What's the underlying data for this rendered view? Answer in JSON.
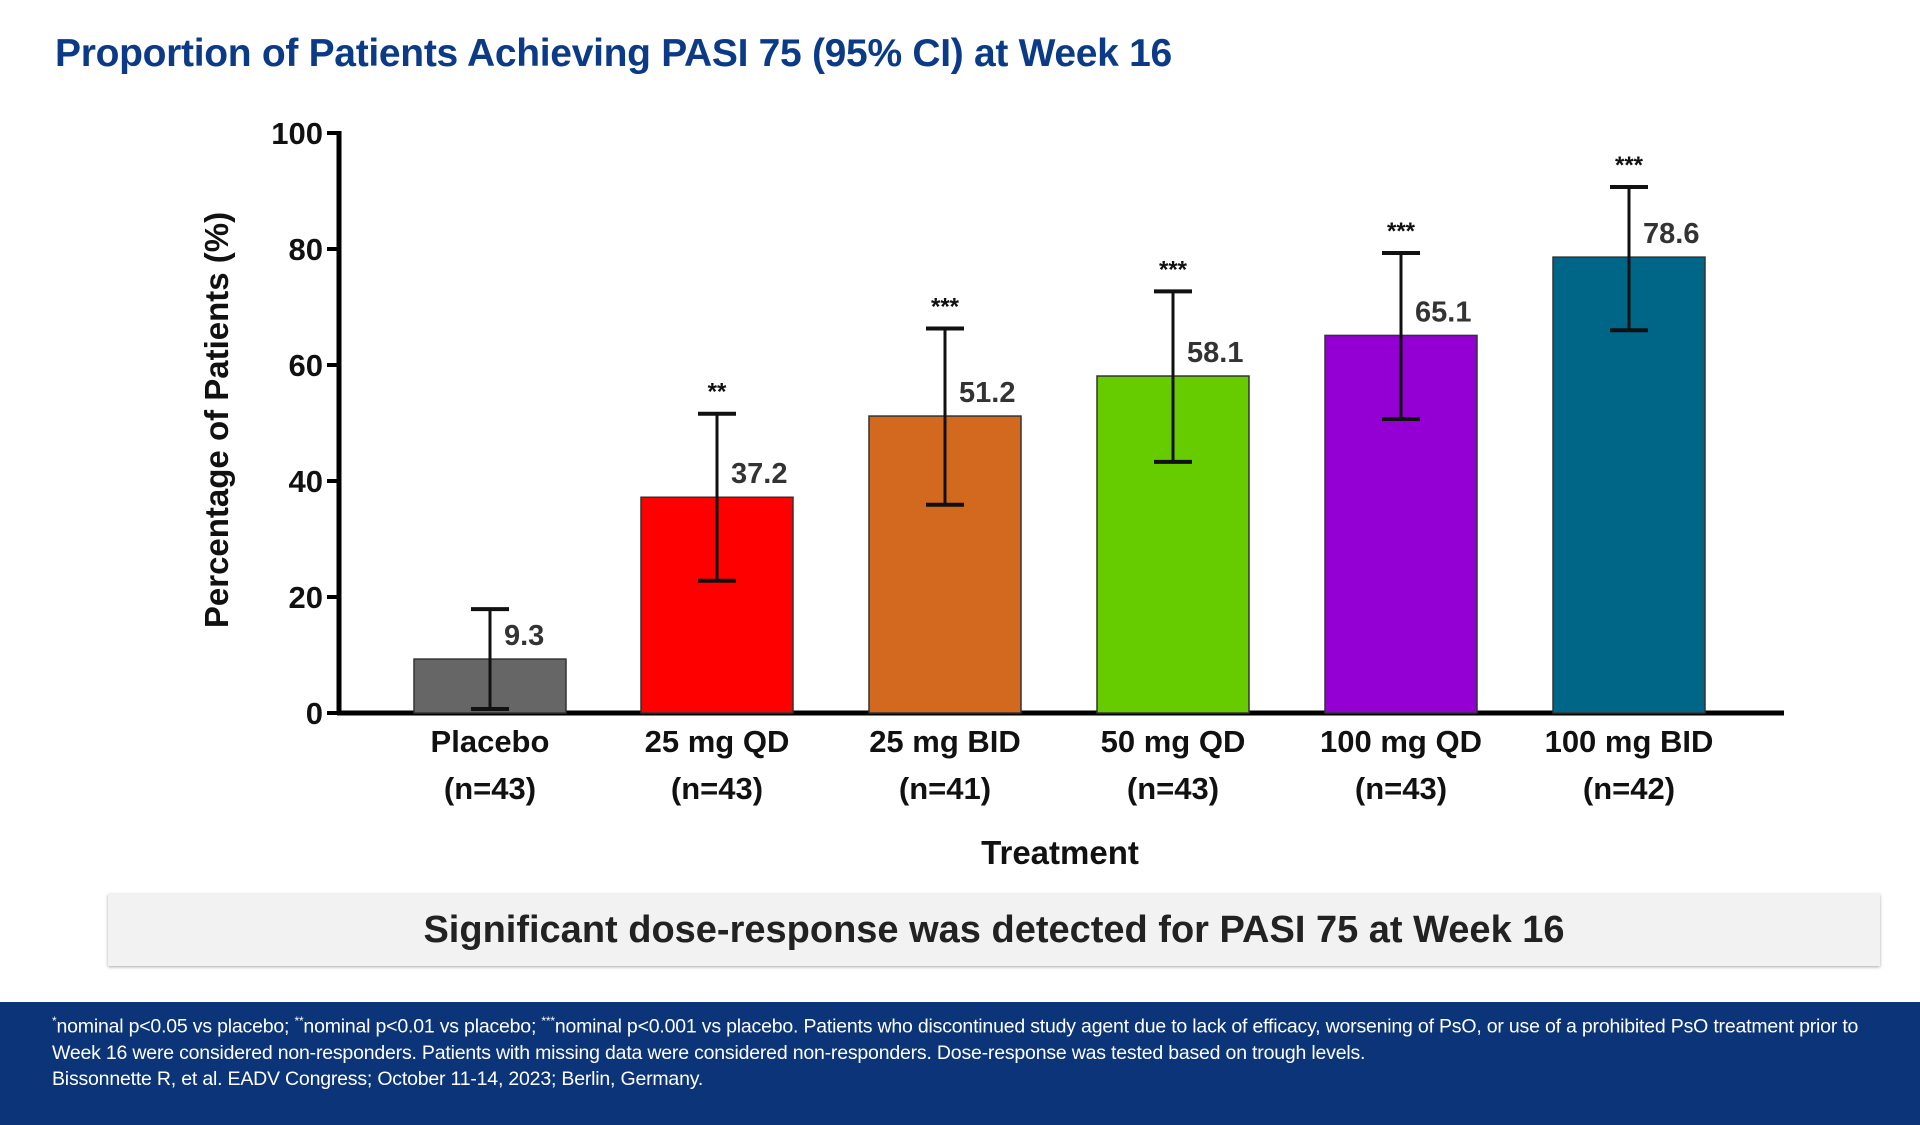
{
  "title": "Proportion of Patients Achieving PASI 75 (95% CI) at Week 16",
  "chart_data": {
    "type": "bar",
    "title": "Proportion of Patients Achieving PASI 75 (95% CI) at Week 16",
    "xlabel": "Treatment",
    "ylabel": "Percentage of Patients (%)",
    "ylim": [
      0,
      100
    ],
    "yticks": [
      0,
      20,
      40,
      60,
      80,
      100
    ],
    "grid": false,
    "categories": [
      {
        "name": "Placebo",
        "n": "(n=43)"
      },
      {
        "name": "25 mg QD",
        "n": "(n=43)"
      },
      {
        "name": "25 mg BID",
        "n": "(n=41)"
      },
      {
        "name": "50 mg QD",
        "n": "(n=43)"
      },
      {
        "name": "100 mg QD",
        "n": "(n=43)"
      },
      {
        "name": "100 mg BID",
        "n": "(n=42)"
      }
    ],
    "values": [
      9.3,
      37.2,
      51.2,
      58.1,
      65.1,
      78.6
    ],
    "ci_lower": [
      0.7,
      22.8,
      35.9,
      43.3,
      50.7,
      66.0
    ],
    "ci_upper": [
      17.9,
      51.6,
      66.3,
      72.7,
      79.3,
      90.7
    ],
    "significance": [
      "",
      "**",
      "***",
      "***",
      "***",
      "***"
    ],
    "colors": [
      "#666666",
      "#ff0000",
      "#d2691e",
      "#66cc00",
      "#9400d3",
      "#006688"
    ]
  },
  "callout": "Significant dose-response was detected for PASI 75 at Week 16",
  "footer": {
    "sig1_mark": "*",
    "sig1_text": "nominal p<0.05 vs placebo; ",
    "sig2_mark": "**",
    "sig2_text": "nominal p<0.01 vs placebo; ",
    "sig3_mark": "***",
    "sig3_text": "nominal p<0.001 vs placebo. Patients who discontinued study agent due to lack of efficacy, worsening of PsO, or use of a prohibited PsO treatment prior to Week 16 were considered non-responders. Patients with missing data were considered non-responders. Dose-response was tested based on trough levels.",
    "citation": "Bissonnette R, et al. EADV Congress; October 11-14, 2023; Berlin, Germany."
  }
}
